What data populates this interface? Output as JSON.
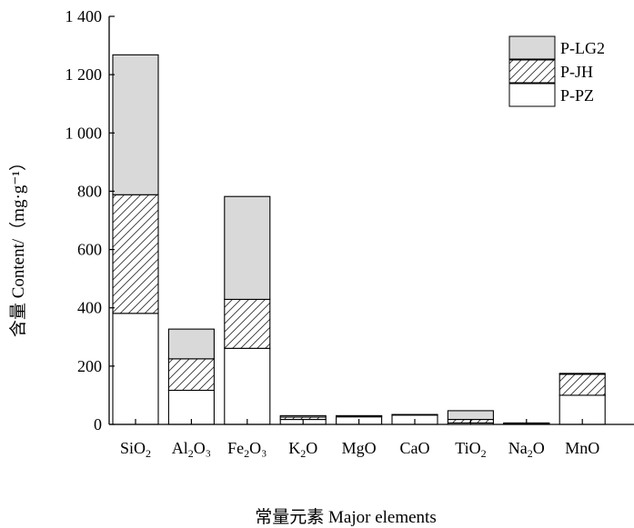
{
  "chart_data": {
    "type": "bar",
    "stacked": true,
    "xlabel": "常量元素 Major elements",
    "ylabel": "含量 Content/（mg·g⁻¹）",
    "ylim": [
      0,
      1400
    ],
    "yticks": [
      {
        "value": 0,
        "label": "0"
      },
      {
        "value": 200,
        "label": "200"
      },
      {
        "value": 400,
        "label": "400"
      },
      {
        "value": 600,
        "label": "600"
      },
      {
        "value": 800,
        "label": "800"
      },
      {
        "value": 1000,
        "label": "1 000"
      },
      {
        "value": 1200,
        "label": "1 200"
      },
      {
        "value": 1400,
        "label": "1 400"
      }
    ],
    "categories": [
      {
        "base": "SiO",
        "sub": "2",
        "tail": ""
      },
      {
        "base": "Al",
        "sub": "2",
        "tail": "O₃"
      },
      {
        "base": "Fe",
        "sub": "2",
        "tail": "O₃"
      },
      {
        "base": "K",
        "sub": "2",
        "tail": "O"
      },
      {
        "base": "MgO",
        "sub": "",
        "tail": ""
      },
      {
        "base": "CaO",
        "sub": "",
        "tail": ""
      },
      {
        "base": "TiO",
        "sub": "2",
        "tail": ""
      },
      {
        "base": "Na",
        "sub": "2",
        "tail": "O"
      },
      {
        "base": "MnO",
        "sub": "",
        "tail": ""
      }
    ],
    "series": [
      {
        "name": "P-PZ",
        "fill": "white",
        "values": [
          381,
          117,
          261,
          17,
          26,
          32,
          5,
          2,
          100
        ]
      },
      {
        "name": "P-JH",
        "fill": "hatch",
        "values": [
          407,
          108,
          168,
          8,
          3,
          1,
          12,
          2,
          72
        ]
      },
      {
        "name": "P-LG2",
        "fill": "gray",
        "values": [
          480,
          102,
          353,
          5,
          1,
          1,
          30,
          1,
          3
        ]
      }
    ],
    "legend": {
      "position": "top-right",
      "order": [
        "P-LG2",
        "P-JH",
        "P-PZ"
      ]
    },
    "colors": {
      "gray": "#d9d9d9",
      "hatch_line": "#333333",
      "stroke": "#000000"
    },
    "grid": false
  }
}
